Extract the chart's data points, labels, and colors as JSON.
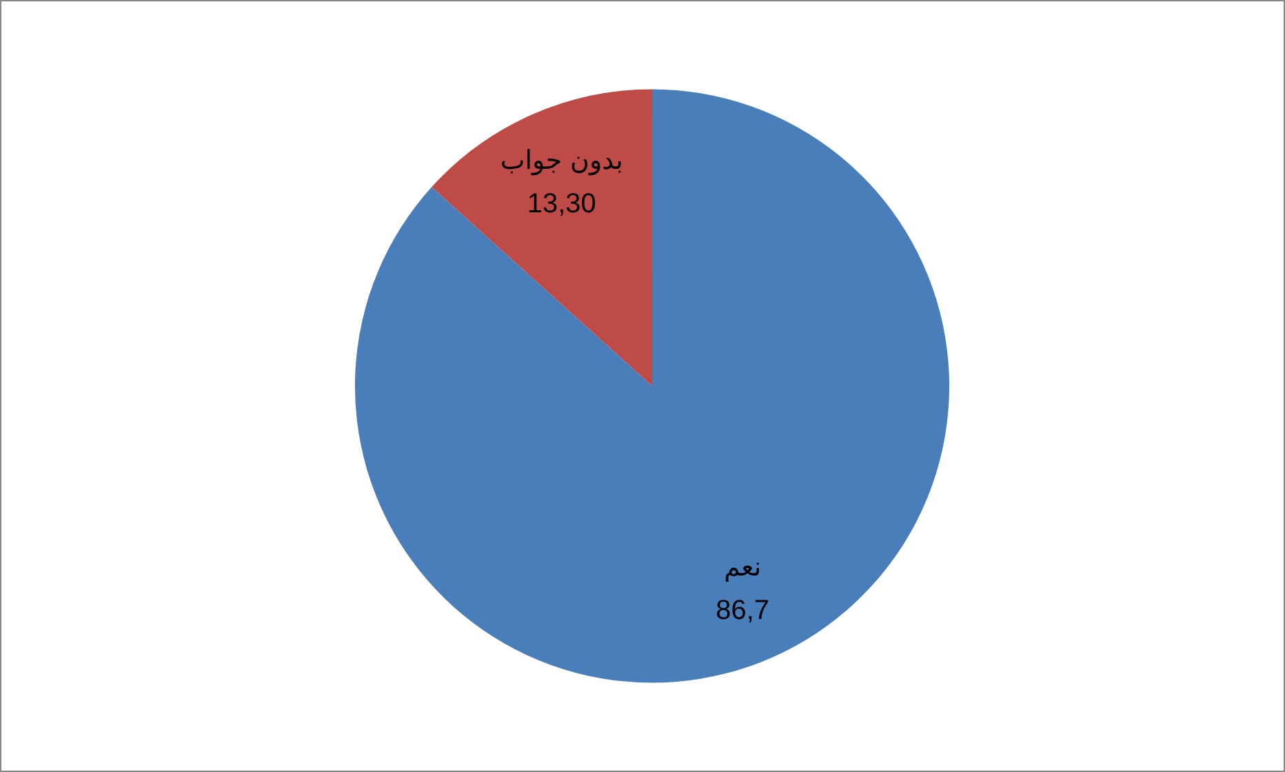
{
  "chart_data": {
    "type": "pie",
    "categories": [
      "نعم",
      "بدون جواب"
    ],
    "values": [
      86.7,
      13.3
    ],
    "value_labels": [
      "86,7",
      "13,30"
    ],
    "colors": [
      "#4a7ebb",
      "#be4b48"
    ]
  }
}
